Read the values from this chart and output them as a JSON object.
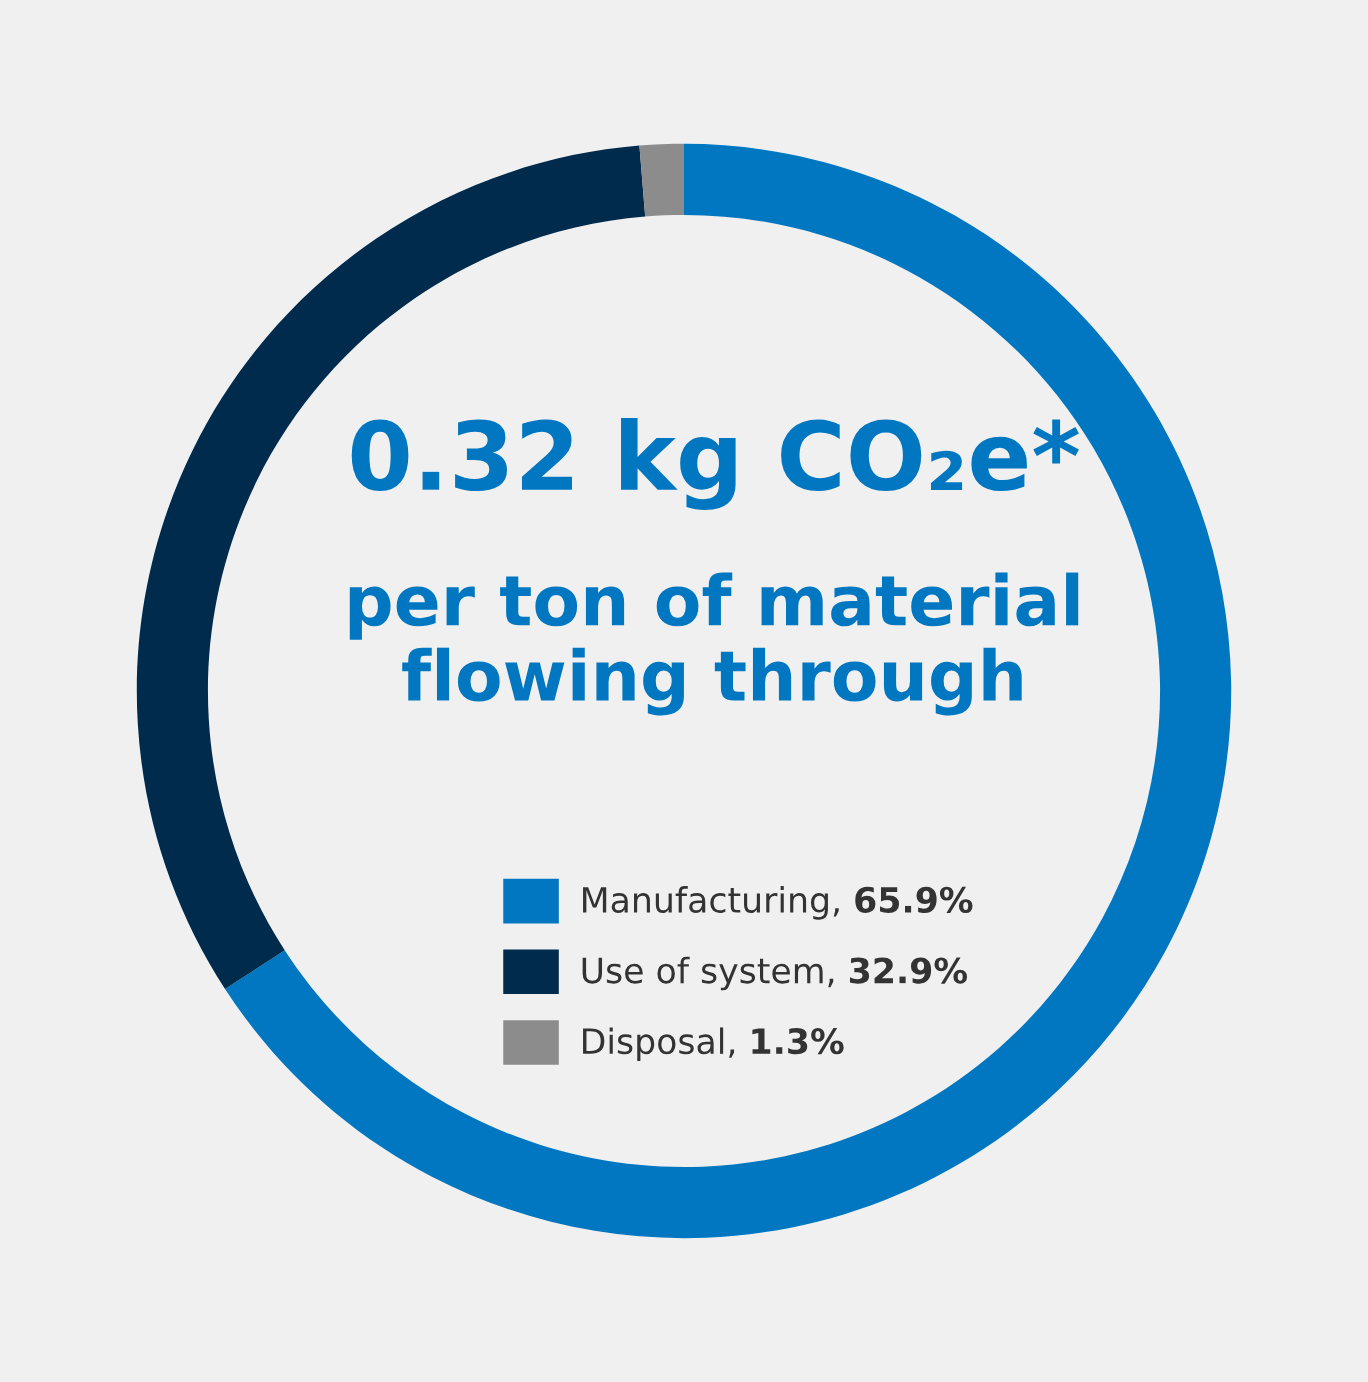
{
  "chart_data": {
    "type": "donut",
    "title": "0.32 kg CO₂e*",
    "subtitle": "per ton of material\nflowing through",
    "categories": [
      "Manufacturing",
      "Use of system",
      "Disposal"
    ],
    "values": [
      65.9,
      32.9,
      1.3
    ],
    "colors": [
      "#0077c0",
      "#002b4d",
      "#8c8c8c"
    ],
    "value_labels": [
      "65.9%",
      "32.9%",
      "1.3%"
    ],
    "legend": "center"
  }
}
